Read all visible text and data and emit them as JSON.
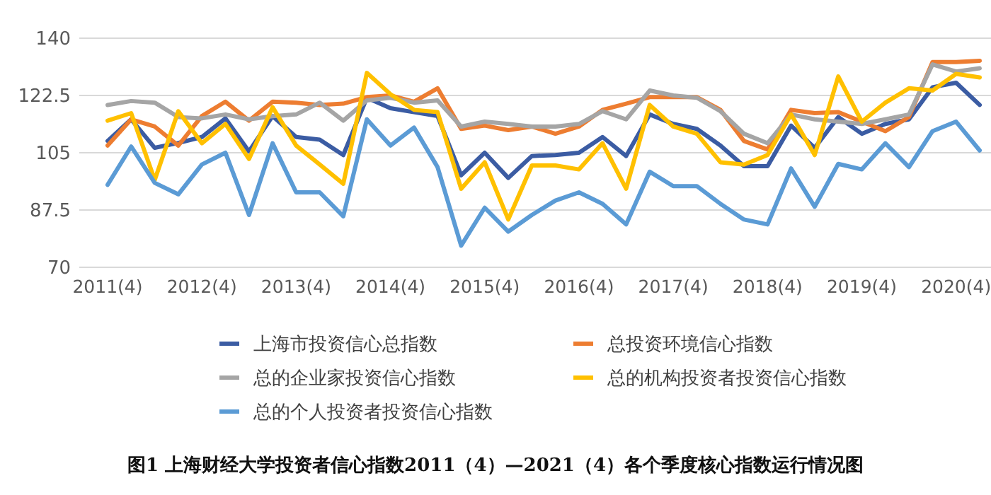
{
  "chart_data": {
    "type": "line",
    "title": "图1  上海财经大学投资者信心指数2011（4）—2021（4）各个季度核心指数运行情况图",
    "categories": [
      "2011(4)",
      null,
      null,
      null,
      "2012(4)",
      null,
      null,
      null,
      "2013(4)",
      null,
      null,
      null,
      "2014(4)",
      null,
      null,
      null,
      "2015(4)",
      null,
      null,
      null,
      "2016(4)",
      null,
      null,
      null,
      "2017(4)",
      null,
      null,
      null,
      "2018(4)",
      null,
      null,
      null,
      "2019(4)",
      null,
      null,
      null,
      "2020(4)",
      null
    ],
    "series": [
      {
        "name": "上海市投资信心总指数",
        "color": "#3b5ca3",
        "values": [
          108.6,
          115.2,
          106.5,
          108,
          109.8,
          115.5,
          105.4,
          116.2,
          109.8,
          109,
          104.3,
          121.8,
          118.6,
          117.4,
          116.2,
          98.1,
          105,
          97.3,
          104,
          104.3,
          105,
          109.8,
          104,
          116.7,
          113.8,
          112.3,
          107.2,
          100.9,
          100.9,
          113.3,
          106.5,
          115.9,
          110.8,
          113.8,
          115.2,
          125,
          126.4,
          119.6
        ]
      },
      {
        "name": "总投资环境信心指数",
        "color": "#ed7d31",
        "values": [
          107.2,
          115.2,
          113,
          107.2,
          116.2,
          120.6,
          114.8,
          120.6,
          120.3,
          119.6,
          120,
          122,
          122.5,
          120.6,
          124.7,
          112.3,
          113.3,
          111.9,
          113,
          110.8,
          113,
          118.1,
          120,
          122,
          122,
          122,
          118.1,
          108.6,
          106,
          118.1,
          117.1,
          117.4,
          114.5,
          111.6,
          115.9,
          132.7,
          132.7,
          133.1
        ]
      },
      {
        "name": "总的企业家投资信心指数",
        "color": "#a5a5a5",
        "values": [
          119.6,
          120.8,
          120.3,
          115.9,
          115.5,
          116.7,
          115.2,
          116.2,
          116.7,
          120.3,
          114.8,
          121,
          121.8,
          120.3,
          121,
          113,
          114.5,
          113.8,
          113,
          113,
          113.8,
          117.7,
          115.2,
          124,
          122.5,
          121.8,
          117.7,
          110.8,
          107.9,
          116.7,
          115.2,
          114.5,
          113.8,
          115.2,
          116.7,
          132,
          129.8,
          130.8
        ]
      },
      {
        "name": "总的机构投资者投资信心指数",
        "color": "#ffc000",
        "values": [
          114.8,
          117.1,
          96.7,
          117.7,
          107.9,
          113.8,
          103.1,
          118.9,
          107.2,
          101.4,
          95.5,
          129.4,
          122.9,
          118.1,
          117.4,
          94,
          102.1,
          84.6,
          101.1,
          101.1,
          99.9,
          107.9,
          94,
          119.6,
          113,
          110.8,
          102.1,
          101.4,
          104.3,
          116.7,
          104.3,
          128.3,
          114.5,
          120.3,
          124.7,
          124,
          129.1,
          128
        ]
      },
      {
        "name": "总的个人投资者投资信心指数",
        "color": "#5b9bd5",
        "values": [
          95.2,
          106.9,
          95.8,
          92.3,
          101.4,
          105,
          86,
          107.9,
          92.9,
          92.9,
          85.6,
          115.2,
          107.2,
          112.7,
          100.6,
          76.6,
          88.2,
          80.9,
          86,
          90.4,
          92.9,
          89.4,
          83.1,
          99.2,
          94.8,
          94.8,
          89.4,
          84.6,
          83.1,
          100.2,
          88.5,
          101.6,
          99.9,
          107.9,
          100.6,
          111.6,
          114.5,
          105.7
        ]
      }
    ],
    "ylim": [
      70,
      140
    ],
    "yticks": [
      70,
      87.5,
      105,
      122.5,
      140
    ],
    "grid": "y",
    "legend": "bottom",
    "line_style": "solid",
    "marker": "none"
  }
}
